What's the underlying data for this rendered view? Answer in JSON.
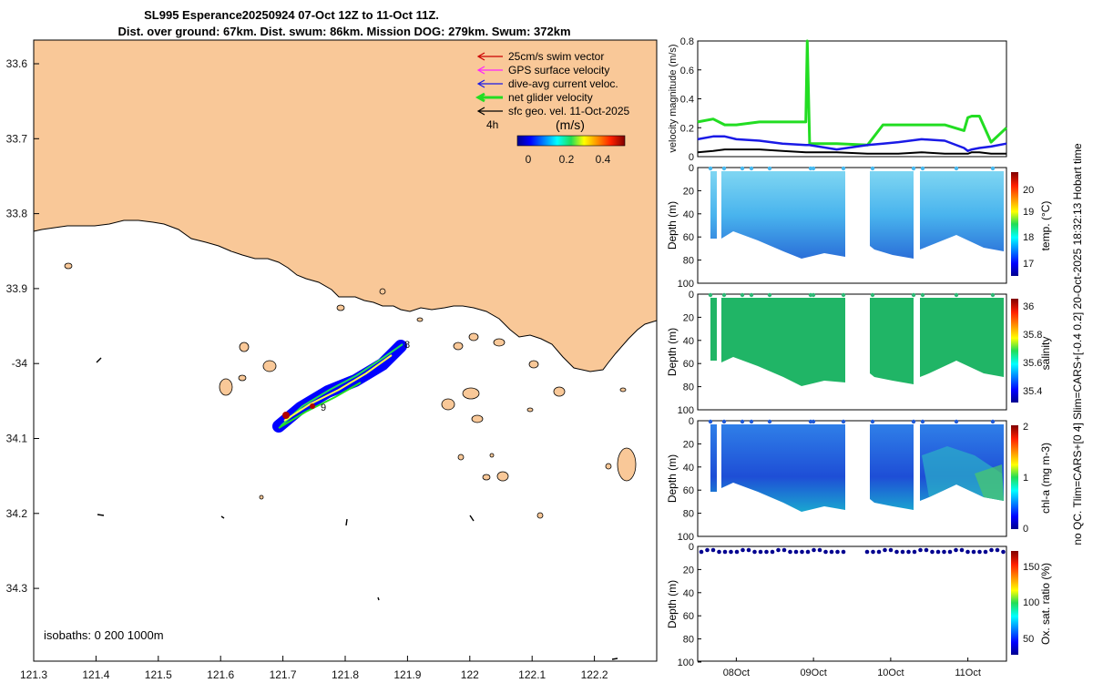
{
  "header": {
    "title_line1": "SL995 Esperance20250924 07-Oct 12Z to 11-Oct 11Z.",
    "title_line2": "Dist. over ground: 67km. Dist. swum: 86km. Mission DOG: 279km. Swum: 372km"
  },
  "colors": {
    "land": "#F9C898",
    "sea": "#FFFFFF",
    "swim_vector": "#CC0000",
    "gps_velocity": "#FF22FF",
    "dive_avg": "#1A1AE6",
    "net_glider": "#22DD22",
    "sfc_geo": "#000000"
  },
  "map": {
    "legend": [
      {
        "label": "25cm/s swim vector",
        "color": "#CC0000"
      },
      {
        "label": "GPS surface velocity",
        "color": "#FF22FF"
      },
      {
        "label": "dive-avg current veloc.",
        "color": "#1A1AE6"
      },
      {
        "label": "net glider velocity",
        "color": "#22DD22"
      },
      {
        "label": "sfc geo. vel. 11-Oct-2025",
        "color": "#000000"
      }
    ],
    "time_label": "4h",
    "colorbar_unit": "(m/s)",
    "colorbar_ticks": [
      "0",
      "0.2",
      "0.4"
    ],
    "isobaths": "isobaths: 0   200  1000m",
    "lon_ticks": [
      "121.3",
      "121.4",
      "121.5",
      "121.6",
      "121.7",
      "121.8",
      "121.9",
      "122",
      "122.1",
      "122.2"
    ],
    "lat_ticks": [
      "33.6",
      "33.7",
      "33.8",
      "33.9",
      "-34",
      "34.1",
      "34.2",
      "34.3"
    ],
    "track_labels": [
      "8",
      "9"
    ]
  },
  "chart_data": [
    {
      "type": "line",
      "title": "",
      "ylabel": "velocity magnitude (m/s)",
      "ylim": [
        0,
        0.8
      ],
      "yticks": [
        "0",
        "0.2",
        "0.4",
        "0.6",
        "0.8"
      ],
      "x": [
        7.5,
        7.7,
        7.85,
        8.0,
        8.3,
        8.6,
        8.9,
        8.92,
        8.95,
        9.3,
        9.7,
        9.9,
        10.1,
        10.4,
        10.7,
        10.95,
        11.0,
        11.05,
        11.15,
        11.3,
        11.5
      ],
      "series": [
        {
          "name": "net glider velocity",
          "values": [
            0.24,
            0.26,
            0.22,
            0.22,
            0.24,
            0.24,
            0.24,
            0.8,
            0.09,
            0.09,
            0.08,
            0.22,
            0.22,
            0.22,
            0.22,
            0.18,
            0.27,
            0.28,
            0.28,
            0.1,
            0.2
          ]
        },
        {
          "name": "dive-avg current veloc.",
          "values": [
            0.12,
            0.14,
            0.14,
            0.12,
            0.11,
            0.09,
            0.08,
            0.08,
            0.08,
            0.05,
            0.08,
            0.09,
            0.1,
            0.12,
            0.11,
            0.06,
            0.04,
            0.05,
            0.06,
            0.07,
            0.09
          ]
        },
        {
          "name": "sfc geo. vel.",
          "values": [
            0.03,
            0.04,
            0.05,
            0.05,
            0.05,
            0.04,
            0.03,
            0.03,
            0.03,
            0.03,
            0.02,
            0.02,
            0.02,
            0.03,
            0.02,
            0.02,
            0.02,
            0.03,
            0.03,
            0.02,
            0.02
          ]
        }
      ]
    },
    {
      "type": "heatmap",
      "title": "",
      "ylabel": "Depth (m)",
      "colorbar_label": "temp. (°C)",
      "colorbar_ticks": [
        "17",
        "18",
        "19",
        "20"
      ],
      "ylim": [
        100,
        0
      ],
      "yticks": [
        "0",
        "20",
        "40",
        "60",
        "80",
        "100"
      ]
    },
    {
      "type": "heatmap",
      "ylabel": "Depth (m)",
      "colorbar_label": "salinity",
      "colorbar_ticks": [
        "35.4",
        "35.6",
        "35.8",
        "36"
      ],
      "ylim": [
        100,
        0
      ],
      "yticks": [
        "0",
        "20",
        "40",
        "60",
        "80",
        "100"
      ]
    },
    {
      "type": "heatmap",
      "ylabel": "Depth (m)",
      "colorbar_label": "chl-a (mg m-3)",
      "colorbar_ticks": [
        "0",
        "1",
        "2"
      ],
      "ylim": [
        100,
        0
      ],
      "yticks": [
        "0",
        "20",
        "40",
        "60",
        "80",
        "100"
      ]
    },
    {
      "type": "heatmap",
      "ylabel": "Depth (m)",
      "colorbar_label": "Ox. sat. ratio (%)",
      "colorbar_ticks": [
        "50",
        "100",
        "150"
      ],
      "ylim": [
        100,
        0
      ],
      "yticks": [
        "0",
        "20",
        "40",
        "60",
        "80",
        "100"
      ],
      "xticks": [
        "08Oct",
        "09Oct",
        "10Oct",
        "11Oct"
      ]
    }
  ],
  "side_caption": "no QC. Tlim=CARS+[0 4] Slim=CARS+[-0.4 0.2] 20-Oct-2025 18:32:13 Hobart time"
}
